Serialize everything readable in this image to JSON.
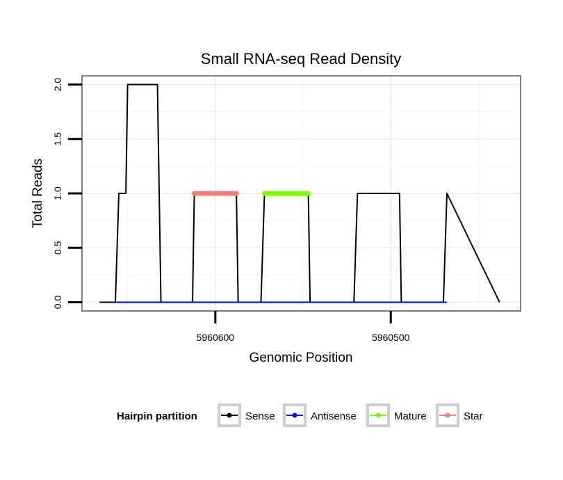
{
  "chart_data": {
    "type": "line",
    "title": "Small RNA-seq Read Density",
    "xlabel": "Genomic Position",
    "ylabel": "Total Reads",
    "x_reversed": true,
    "xlim": [
      5960676,
      5960426
    ],
    "ylim": [
      -0.08,
      2.08
    ],
    "x_ticks": [
      5960600,
      5960500
    ],
    "x_tick_labels": [
      "5960600",
      "5960500"
    ],
    "x_minor_ticks": [
      5960650,
      5960550,
      5960450
    ],
    "y_ticks": [
      0.0,
      0.5,
      1.0,
      1.5,
      2.0
    ],
    "y_tick_labels": [
      "0.0",
      "0.5",
      "1.0",
      "1.5",
      "2.0"
    ],
    "y_minor_ticks": [
      0.25,
      0.75,
      1.25,
      1.75
    ],
    "grid": true,
    "series": [
      {
        "name": "Sense",
        "color": "#000000",
        "x": [
          5960666,
          5960657,
          5960655,
          5960651,
          5960650,
          5960633,
          5960631,
          5960613,
          5960612,
          5960588,
          5960587,
          5960574,
          5960572,
          5960547,
          5960546,
          5960521,
          5960519,
          5960495,
          5960494,
          5960470,
          5960468,
          5960438
        ],
        "y": [
          0,
          0,
          1,
          1,
          2,
          2,
          0,
          0,
          1,
          1,
          0,
          0,
          1,
          1,
          0,
          0,
          1,
          1,
          0,
          0,
          1,
          0
        ]
      },
      {
        "name": "Antisense",
        "color": "#0000ff",
        "x": [
          5960657,
          5960468
        ],
        "y": [
          0,
          0
        ]
      },
      {
        "name": "Mature",
        "color": "#7fff00",
        "x": [
          5960572,
          5960547
        ],
        "y": [
          1,
          1
        ]
      },
      {
        "name": "Star",
        "color": "#f08070",
        "x": [
          5960612,
          5960588
        ],
        "y": [
          1,
          1
        ]
      }
    ],
    "legend": {
      "title": "Hairpin partition",
      "position": "bottom",
      "entries": [
        "Sense",
        "Antisense",
        "Mature",
        "Star"
      ]
    }
  }
}
